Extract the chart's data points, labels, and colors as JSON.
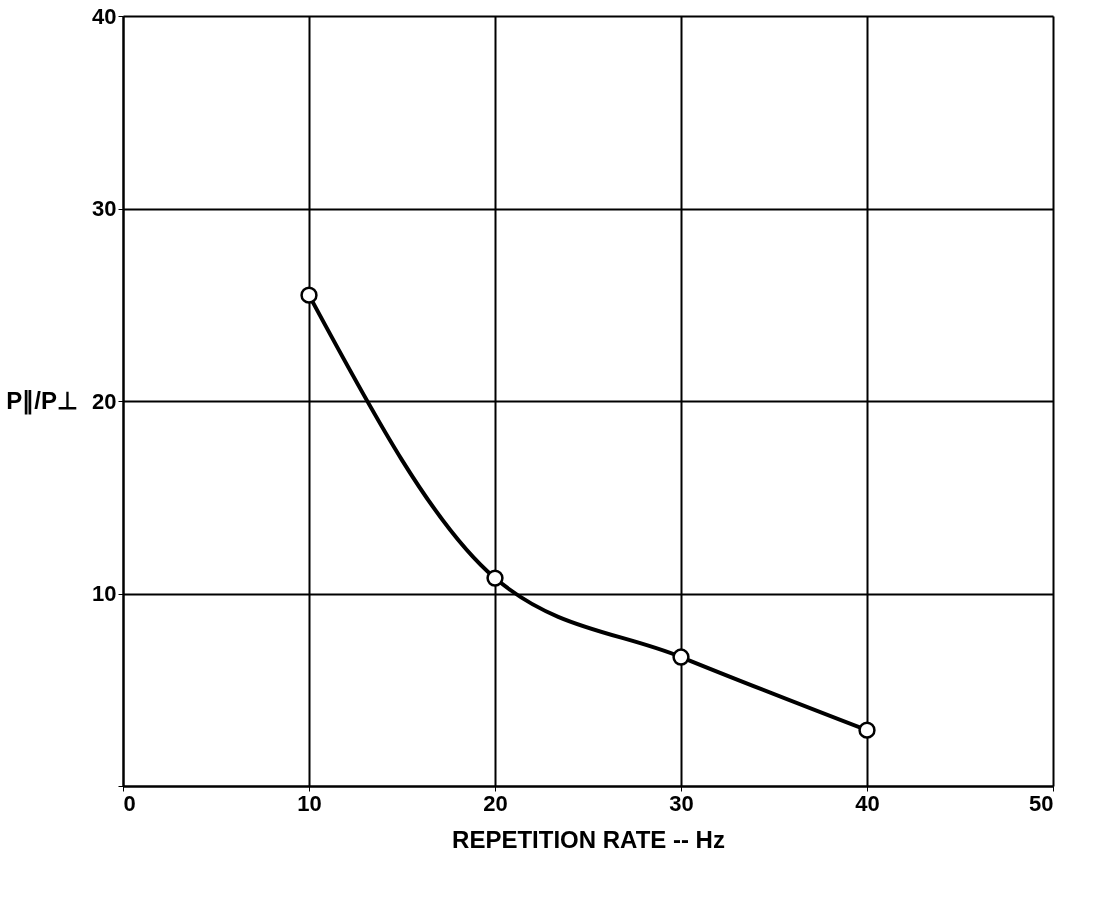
{
  "chart_data": {
    "type": "line",
    "xlabel": "REPETITION RATE -- Hz",
    "ylabel": "P∥/P⊥",
    "x": [
      10,
      20,
      30,
      40
    ],
    "series": [
      {
        "color": "#000000",
        "values": [
          25.5,
          10.8,
          6.7,
          2.9
        ]
      }
    ],
    "xlim": [
      0,
      50
    ],
    "xticks": [
      0,
      10,
      20,
      30,
      40,
      50
    ],
    "ylim": [
      0,
      40
    ],
    "yticks": [
      {
        "value": 0,
        "label": null
      },
      10,
      20,
      30,
      40
    ],
    "grid": true,
    "marker": "circle",
    "line_style": "solid"
  }
}
